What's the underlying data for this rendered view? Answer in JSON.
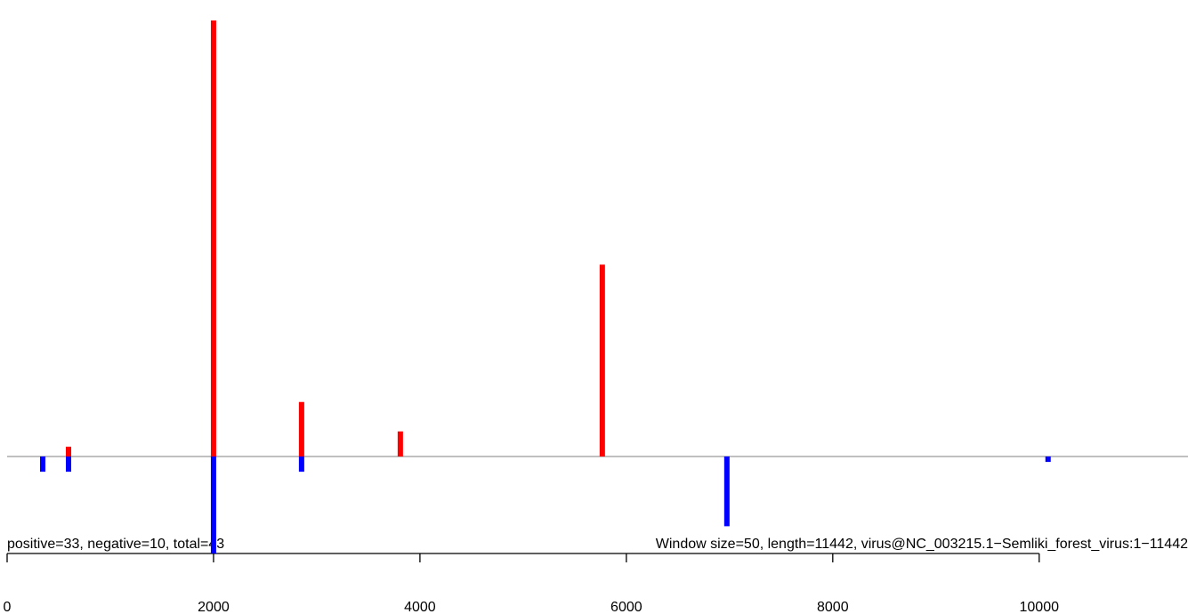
{
  "chart_data": {
    "type": "bar",
    "x_label": "positive=33, negative=10, total=43",
    "annotation": "Window size=50, length=11442, virus@NC_003215.1−Semliki_forest_virus:1−11442",
    "series": [
      {
        "name": "positive",
        "color": "#ff0000",
        "x": [
          595,
          2000,
          2853,
          3810,
          5767
        ],
        "values": [
          0.45,
          20,
          2.5,
          1.15,
          8.8
        ]
      },
      {
        "name": "negative",
        "color": "#0000ff",
        "x": [
          345,
          595,
          2000,
          2853,
          6974,
          10086
        ],
        "values": [
          -0.7,
          -0.7,
          -4.45,
          -0.7,
          -3.2,
          -0.25
        ]
      }
    ],
    "xlim": [
      0,
      11442
    ],
    "xticks": [
      0,
      2000,
      4000,
      6000,
      8000,
      10000
    ],
    "ylim": [
      -4.45,
      20
    ]
  }
}
